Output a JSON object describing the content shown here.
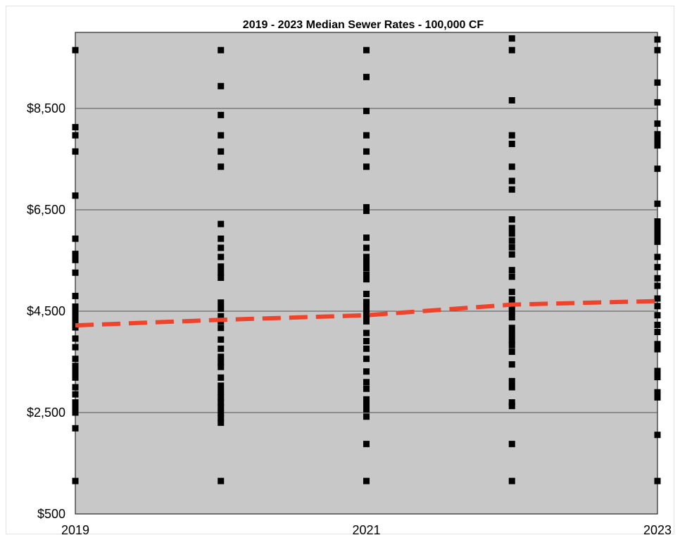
{
  "chart_data": {
    "type": "scatter",
    "title": "2019 - 2023 Median Sewer Rates - 100,000 CF",
    "xlabel": "",
    "ylabel": "",
    "xlim": [
      2019,
      2023
    ],
    "ylim": [
      500,
      10000
    ],
    "x_ticks": [
      2019,
      2021,
      2023
    ],
    "x_tick_labels": [
      "2019",
      "2021",
      "2023"
    ],
    "y_ticks": [
      500,
      2500,
      4500,
      6500,
      8500
    ],
    "y_tick_labels": [
      "$500",
      "$2,500",
      "$4,500",
      "$6,500",
      "$8,500"
    ],
    "grid": "horizontal",
    "legend": "none",
    "colors": {
      "plot_bg": "#c8c8c8",
      "marker": "#000000",
      "median_line": "#f0432b",
      "grid": "#555555"
    },
    "series": [
      {
        "x": 2019,
        "values": [
          9650,
          8130,
          7970,
          7650,
          6780,
          5930,
          5630,
          5510,
          5260,
          4800,
          4590,
          4490,
          4390,
          4300,
          4180,
          3960,
          3790,
          3560,
          3420,
          3300,
          3190,
          3000,
          2860,
          2700,
          2600,
          2500,
          2190,
          1150
        ]
      },
      {
        "x": 2020,
        "values": [
          9650,
          8940,
          8370,
          7970,
          7650,
          7350,
          6220,
          5930,
          5750,
          5570,
          5380,
          5260,
          5160,
          4670,
          4550,
          4400,
          4300,
          4170,
          3940,
          3760,
          3600,
          3490,
          3400,
          3190,
          3030,
          2910,
          2800,
          2700,
          2600,
          2490,
          2390,
          2300,
          1150
        ]
      },
      {
        "x": 2021,
        "values": [
          9650,
          9120,
          8450,
          7970,
          7650,
          7350,
          6550,
          6480,
          5950,
          5750,
          5570,
          5450,
          5350,
          5220,
          5130,
          4840,
          4680,
          4600,
          4500,
          4400,
          4300,
          4070,
          3910,
          3760,
          3560,
          3310,
          3100,
          2970,
          2760,
          2660,
          2560,
          2420,
          1880,
          1150
        ]
      },
      {
        "x": 2022,
        "values": [
          9880,
          9650,
          8660,
          7970,
          7800,
          7350,
          7070,
          6900,
          6310,
          6140,
          6030,
          5890,
          5760,
          5620,
          5310,
          5180,
          4880,
          4730,
          4600,
          4490,
          4380,
          4170,
          4050,
          3930,
          3830,
          3700,
          3450,
          3120,
          3000,
          2700,
          2630,
          1880,
          1150
        ]
      },
      {
        "x": 2023,
        "values": [
          9860,
          9650,
          9010,
          8620,
          8200,
          7990,
          7870,
          7770,
          7310,
          6620,
          6270,
          6180,
          6060,
          5960,
          5870,
          5570,
          5370,
          5150,
          5000,
          4750,
          4600,
          4420,
          4230,
          4090,
          3850,
          3750,
          3320,
          3200,
          2900,
          2800,
          2060,
          1150
        ]
      }
    ],
    "median_line": {
      "name": "",
      "x": [
        2019,
        2020,
        2021,
        2022,
        2023
      ],
      "values": [
        4220,
        4330,
        4420,
        4630,
        4700
      ]
    }
  }
}
